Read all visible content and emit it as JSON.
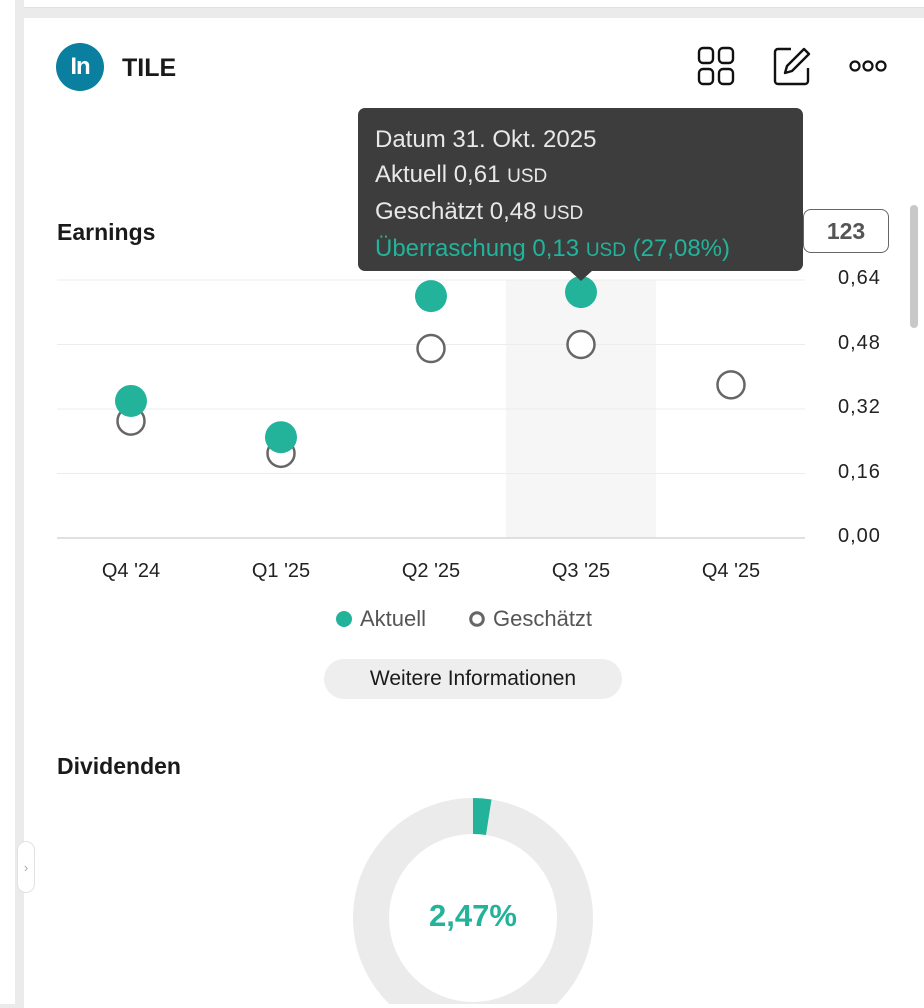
{
  "header": {
    "logo_text": "In",
    "ticker": "TILE",
    "icons": [
      "grid-icon",
      "edit-icon",
      "more-icon"
    ]
  },
  "earnings": {
    "title": "Earnings",
    "badge": "123",
    "tooltip": {
      "date_line": "Datum 31. Okt. 2025",
      "actual_label": "Aktuell 0,61",
      "estimate_label": "Geschätzt 0,48",
      "surprise_label": "Überraschung 0,13",
      "surprise_pct": "(27,08%)",
      "currency": "USD"
    },
    "legend": {
      "actual": "Aktuell",
      "estimate": "Geschätzt"
    },
    "more_button": "Weitere Informationen"
  },
  "chart_data": {
    "type": "scatter",
    "categories": [
      "Q4 '24",
      "Q1 '25",
      "Q2 '25",
      "Q3 '25",
      "Q4 '25"
    ],
    "y_ticks": [
      "0,64",
      "0,48",
      "0,32",
      "0,16",
      "0,00"
    ],
    "ylim": [
      0,
      0.64
    ],
    "highlighted_category": "Q3 '25",
    "series": [
      {
        "name": "Aktuell",
        "values": [
          0.34,
          0.25,
          0.6,
          0.61,
          null
        ],
        "color": "#23b39a",
        "style": "filled"
      },
      {
        "name": "Geschätzt",
        "values": [
          0.29,
          0.21,
          0.47,
          0.48,
          0.38
        ],
        "color": "#666666",
        "style": "hollow"
      }
    ]
  },
  "dividends": {
    "title": "Dividenden",
    "yield_text": "2,47%",
    "yield_value": 2.47,
    "colors": {
      "accent": "#23b39a",
      "track": "#ebebeb"
    }
  }
}
